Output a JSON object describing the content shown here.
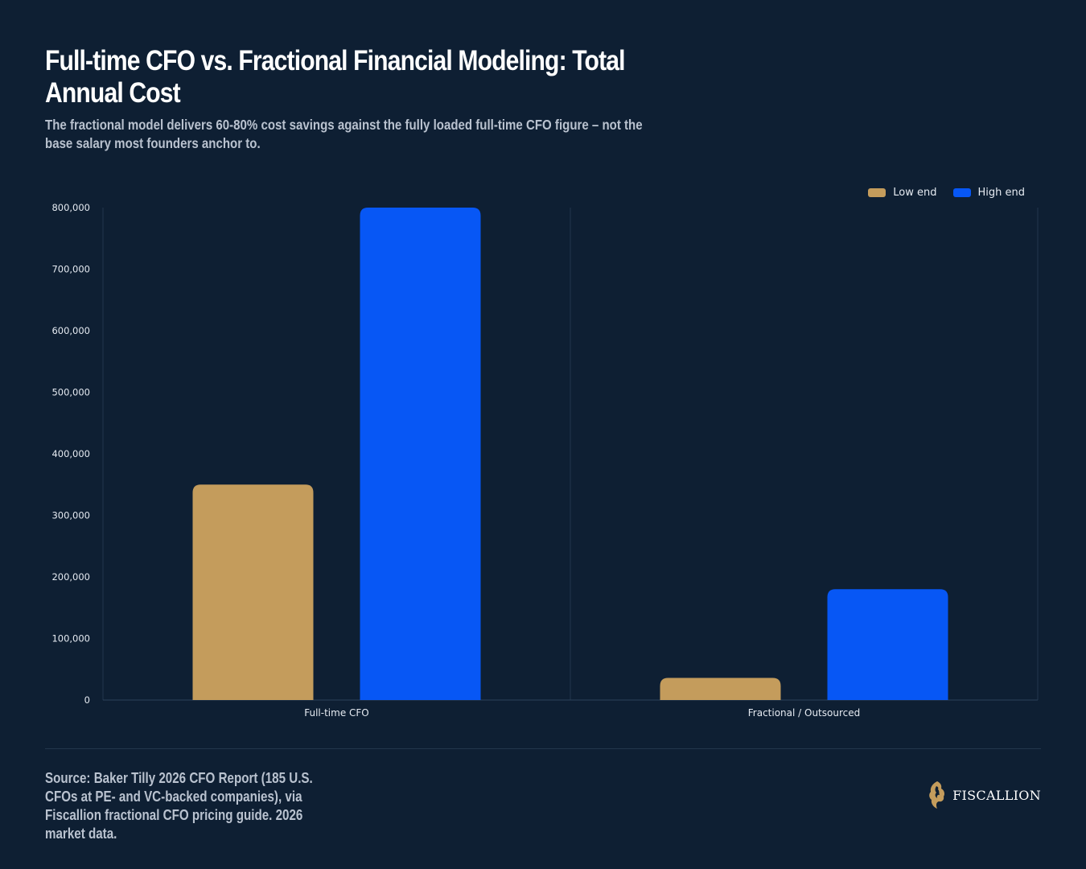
{
  "header": {
    "title": "Full-time CFO vs. Fractional Financial Modeling: Total Annual Cost",
    "subtitle": "The fractional model delivers 60-80% cost savings against the fully loaded full-time CFO figure – not the base salary most founders anchor to."
  },
  "footer": {
    "source": "Source: Baker Tilly 2026 CFO Report (185 U.S. CFOs at PE- and VC-backed companies), via Fiscallion fractional CFO pricing guide. 2026 market data.",
    "brand": "FISCALLION",
    "brand_icon": "lion-head-icon"
  },
  "colors": {
    "background": "#0e1f33",
    "low": "#c49c5c",
    "high": "#0757f5",
    "gridline": "#22364c",
    "tick_text": "#e6ebf2"
  },
  "chart_data": {
    "type": "bar",
    "title": "Full-time CFO vs. Fractional Financial Modeling: Total Annual Cost",
    "xlabel": "",
    "ylabel": "",
    "categories": [
      "Full-time CFO",
      "Fractional / Outsourced"
    ],
    "series": [
      {
        "name": "Low end",
        "color": "#c49c5c",
        "values": [
          350000,
          36000
        ]
      },
      {
        "name": "High end",
        "color": "#0757f5",
        "values": [
          800000,
          180000
        ]
      }
    ],
    "ylim": [
      0,
      800000
    ],
    "yticks": [
      0,
      100000,
      200000,
      300000,
      400000,
      500000,
      600000,
      700000,
      800000
    ],
    "ytick_labels": [
      "0",
      "100,000",
      "200,000",
      "300,000",
      "400,000",
      "500,000",
      "600,000",
      "700,000",
      "800,000"
    ],
    "legend_position": "top-right",
    "grid": "vertical category separators only"
  }
}
